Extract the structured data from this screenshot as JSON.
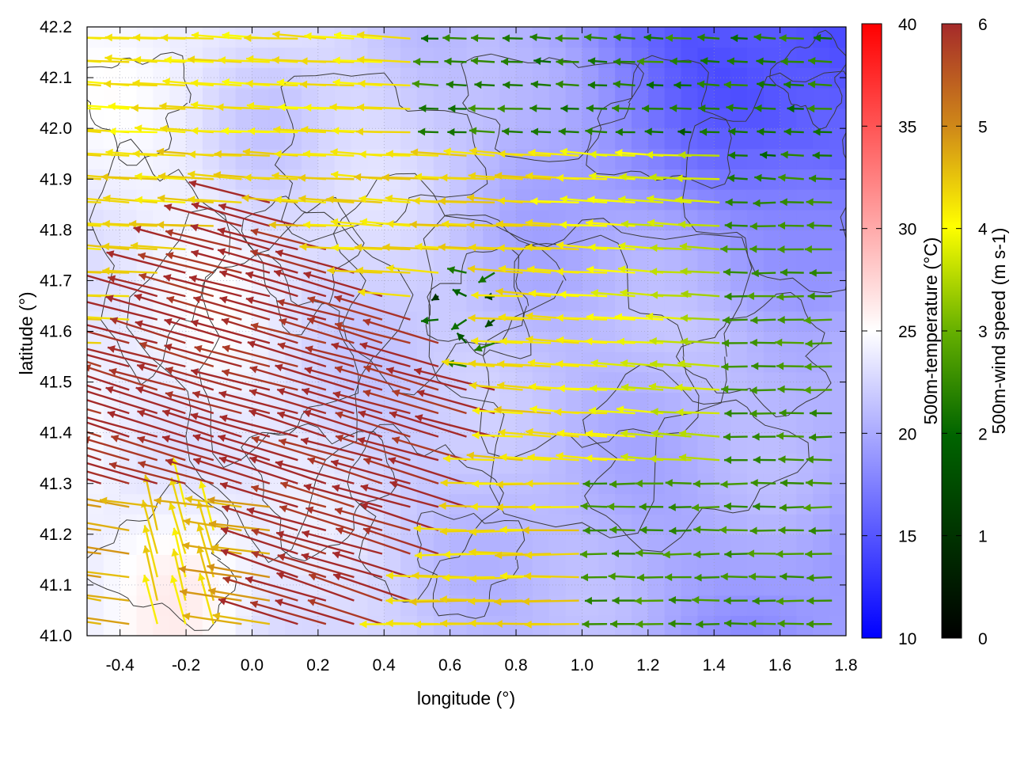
{
  "chart_data": {
    "type": "heatmap",
    "title": "",
    "xlabel": "longitude (°)",
    "ylabel": "latitude (°)",
    "xlim": [
      -0.5,
      1.8
    ],
    "ylim": [
      41.0,
      42.2
    ],
    "x_ticks": [
      "-0.4",
      "-0.2",
      "0.0",
      "0.2",
      "0.4",
      "0.6",
      "0.8",
      "1.0",
      "1.2",
      "1.4",
      "1.6",
      "1.8"
    ],
    "y_ticks": [
      "41.0",
      "41.1",
      "41.2",
      "41.3",
      "41.4",
      "41.5",
      "41.6",
      "41.7",
      "41.8",
      "41.9",
      "42.0",
      "42.1",
      "42.2"
    ],
    "grid": true,
    "layers": [
      "500m-temperature color field",
      "terrain contour lines",
      "500m-wind vectors colored by speed"
    ],
    "temperature_colorbar": {
      "label": "500m-temperature (°C)",
      "range": [
        10,
        40
      ],
      "ticks": [
        "10",
        "15",
        "20",
        "25",
        "30",
        "35",
        "40"
      ],
      "colors": [
        "#0000ff",
        "#ffffff",
        "#ff0000"
      ]
    },
    "wind_colorbar": {
      "label": "500m-wind speed (m s-1)",
      "range": [
        0,
        6
      ],
      "ticks": [
        "0",
        "1",
        "2",
        "3",
        "4",
        "5",
        "6"
      ],
      "colors": [
        "#000000",
        "#006400",
        "#66b000",
        "#ffff00",
        "#d08a18",
        "#a52a2a"
      ]
    },
    "wind_field_regions": [
      {
        "region": "southwest and west of 0.4",
        "speed": 6,
        "direction_to": "west-northwest"
      },
      {
        "region": "central band 0.4-1.4, 41.3-41.9",
        "speed": 4,
        "direction_to": "west"
      },
      {
        "region": "northeast",
        "speed": 1.5,
        "direction_to": "west"
      },
      {
        "region": "southeast",
        "speed": 2,
        "direction_to": "west"
      },
      {
        "region": "near -0.2, 41.1",
        "speed": 4,
        "direction_to": "north-northwest"
      }
    ],
    "temperature_field": {
      "west": 24,
      "central": 21,
      "northeast": 15,
      "southeast": 19,
      "southwest_corner": 26
    }
  }
}
